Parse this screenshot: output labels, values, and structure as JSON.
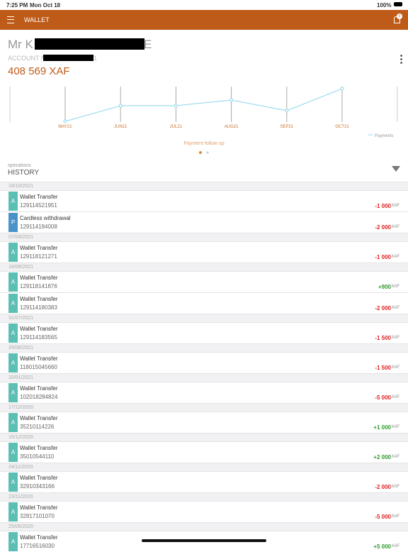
{
  "status_bar": {
    "time": "7:25 PM",
    "date": "Mon Oct 18",
    "battery": "100%"
  },
  "header": {
    "title": "WALLET",
    "notifications": "0"
  },
  "account": {
    "name_start": "Mr K",
    "name_end": "E",
    "number_label": "ACCOUNT N°",
    "number_end": "1",
    "balance": "408 569 XAF"
  },
  "chart_data": {
    "type": "line",
    "caption": "Payment follow up",
    "categories": [
      "MAY21",
      "JUN21",
      "JUL21",
      "AUG21",
      "SEP21",
      "OCT21"
    ],
    "series": [
      {
        "name": "Payments",
        "color": "#8ad6ee",
        "values": [
          2,
          46,
          46,
          62,
          32,
          94
        ]
      }
    ],
    "ylim": [
      0,
      100
    ],
    "legend": "bottom-right"
  },
  "history": {
    "subtitle": "operations",
    "title": "HISTORY",
    "groups": [
      {
        "date": "18/10/2021",
        "items": [
          {
            "badge": "A",
            "label": "Wallet Transfer",
            "ref": "129114521951",
            "amount": "-1 000",
            "currency": "XAF"
          },
          {
            "badge": "P",
            "label": "Cardless withdrawal",
            "ref": "129114194008",
            "amount": "-2 000",
            "currency": "XAF"
          }
        ]
      },
      {
        "date": "07/09/2021",
        "items": [
          {
            "badge": "A",
            "label": "Wallet Transfer",
            "ref": "129118121271",
            "amount": "-1 000",
            "currency": "XAF"
          }
        ]
      },
      {
        "date": "18/08/2021",
        "items": [
          {
            "badge": "A",
            "label": "Wallet Transfer",
            "ref": "129118141876",
            "amount": "+900",
            "currency": "XAF"
          },
          {
            "badge": "A",
            "label": "Wallet Transfer",
            "ref": "129114180383",
            "amount": "-2 000",
            "currency": "XAF"
          }
        ]
      },
      {
        "date": "31/07/2021",
        "items": [
          {
            "badge": "A",
            "label": "Wallet Transfer",
            "ref": "129114183565",
            "amount": "-1 500",
            "currency": "XAF"
          }
        ]
      },
      {
        "date": "29/06/2021",
        "items": [
          {
            "badge": "A",
            "label": "Wallet Transfer",
            "ref": "118015045660",
            "amount": "-1 500",
            "currency": "XAF"
          }
        ]
      },
      {
        "date": "20/01/2021",
        "items": [
          {
            "badge": "A",
            "label": "Wallet Transfer",
            "ref": "102018284824",
            "amount": "-5 000",
            "currency": "XAF"
          }
        ]
      },
      {
        "date": "17/12/2020",
        "items": [
          {
            "badge": "A",
            "label": "Wallet Transfer",
            "ref": "35210114226",
            "amount": "+1 000",
            "currency": "XAF"
          }
        ]
      },
      {
        "date": "15/12/2020",
        "items": [
          {
            "badge": "A",
            "label": "Wallet Transfer",
            "ref": "35010544110",
            "amount": "+2 000",
            "currency": "XAF"
          }
        ]
      },
      {
        "date": "24/11/2020",
        "items": [
          {
            "badge": "A",
            "label": "Wallet Transfer",
            "ref": "32910343166",
            "amount": "-2 000",
            "currency": "XAF"
          }
        ]
      },
      {
        "date": "23/11/2020",
        "items": [
          {
            "badge": "A",
            "label": "Wallet Transfer",
            "ref": "32817101070",
            "amount": "-5 000",
            "currency": "XAF"
          }
        ]
      },
      {
        "date": "25/06/2020",
        "items": [
          {
            "badge": "A",
            "label": "Wallet Transfer",
            "ref": "17716516030",
            "amount": "+5 000",
            "currency": "XAF"
          }
        ]
      }
    ]
  }
}
